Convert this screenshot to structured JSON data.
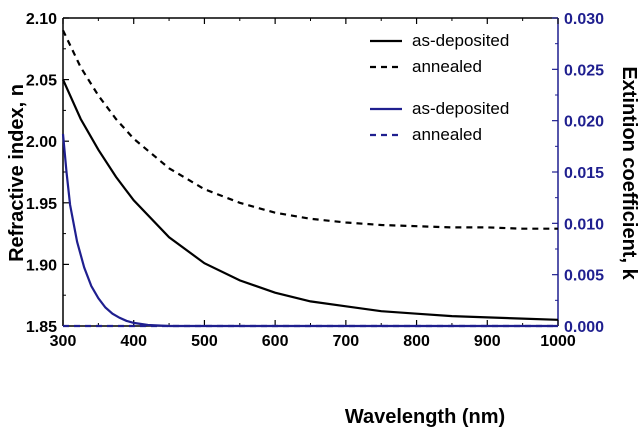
{
  "colors": {
    "left_axis": "#000000",
    "right_axis": "#1f1f8f",
    "series_black": "#000000",
    "series_blue": "#1f1f8f"
  },
  "chart_data": {
    "type": "line",
    "xlabel": "Wavelength (nm)",
    "ylabel_left": "Refractive index, n",
    "ylabel_right": "Extintion coefficient, k",
    "xlim": [
      300,
      1000
    ],
    "ylim_left": [
      1.85,
      2.1
    ],
    "ylim_right": [
      0.0,
      0.03
    ],
    "x_ticks": [
      "300",
      "400",
      "500",
      "600",
      "700",
      "800",
      "900",
      "1000"
    ],
    "y_left_ticks": [
      "1.85",
      "1.90",
      "1.95",
      "2.00",
      "2.05",
      "2.10"
    ],
    "y_right_ticks": [
      "0.000",
      "0.005",
      "0.010",
      "0.015",
      "0.020",
      "0.025",
      "0.030"
    ],
    "grid": false,
    "legend_position": "top-right",
    "series": [
      {
        "name": "as-deposited",
        "axis": "left",
        "color": "#000000",
        "dash": "solid",
        "x": [
          300,
          325,
          350,
          375,
          400,
          450,
          500,
          550,
          600,
          650,
          700,
          750,
          800,
          850,
          900,
          950,
          1000
        ],
        "y": [
          2.05,
          2.018,
          1.993,
          1.971,
          1.952,
          1.922,
          1.901,
          1.887,
          1.877,
          1.87,
          1.866,
          1.862,
          1.86,
          1.858,
          1.857,
          1.856,
          1.855
        ]
      },
      {
        "name": "annealed",
        "axis": "left",
        "color": "#000000",
        "dash": "dashed",
        "x": [
          300,
          325,
          350,
          375,
          400,
          450,
          500,
          550,
          600,
          650,
          700,
          750,
          800,
          850,
          900,
          950,
          1000
        ],
        "y": [
          2.09,
          2.06,
          2.037,
          2.018,
          2.002,
          1.978,
          1.961,
          1.95,
          1.942,
          1.937,
          1.934,
          1.932,
          1.931,
          1.93,
          1.93,
          1.929,
          1.929
        ]
      },
      {
        "name": "as-deposited",
        "axis": "right",
        "color": "#1f1f8f",
        "dash": "solid",
        "x": [
          300,
          305,
          310,
          320,
          330,
          340,
          350,
          360,
          370,
          380,
          390,
          400,
          420,
          450,
          500,
          600,
          700,
          800,
          900,
          1000
        ],
        "y": [
          0.0187,
          0.015,
          0.0118,
          0.0082,
          0.0057,
          0.0039,
          0.0027,
          0.0018,
          0.0012,
          0.0008,
          0.0005,
          0.0003,
          0.0001,
          0.0,
          0.0,
          0.0,
          0.0,
          0.0,
          0.0,
          0.0
        ]
      },
      {
        "name": "annealed",
        "axis": "right",
        "color": "#1f1f8f",
        "dash": "dashed",
        "x": [
          300,
          1000
        ],
        "y": [
          0.0,
          0.0
        ]
      }
    ]
  }
}
